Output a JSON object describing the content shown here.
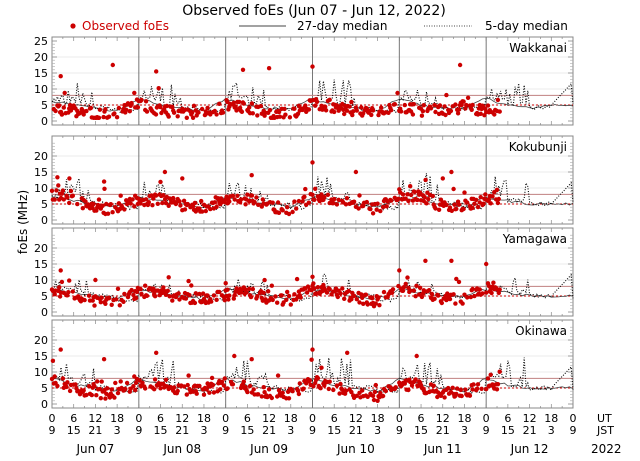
{
  "chart_data": {
    "type": "scatter",
    "title": "Observed foEs (Jun 07 - Jun 12, 2022)",
    "ylabel": "foEs (MHz)",
    "ylim": [
      0,
      25
    ],
    "yticks": [
      0,
      5,
      10,
      15,
      20,
      25
    ],
    "legend": {
      "placement": "top",
      "entries": [
        {
          "label": "Observed foEs",
          "style": "red-dot"
        },
        {
          "label": "27-day median",
          "style": "solid-line"
        },
        {
          "label": "5-day median",
          "style": "dotted-line"
        }
      ]
    },
    "x_axis": {
      "ut_label": "UT",
      "jst_label": "JST",
      "ut_ticks": [
        "0",
        "6",
        "12",
        "18"
      ],
      "jst_ticks": [
        "9",
        "15",
        "21",
        "3"
      ],
      "days": [
        "Jun 07",
        "Jun 08",
        "Jun 09",
        "Jun 10",
        "Jun 11",
        "Jun 12"
      ],
      "year": "2022"
    },
    "reference_lines": {
      "upper": 8,
      "lower": 5
    },
    "colors": {
      "observed": "#cc0000",
      "median": "#444444",
      "refline": "#c08080",
      "day_divider": "#777777"
    },
    "panels": [
      {
        "station": "Wakkanai",
        "observed_peaks": [
          [
            0.1,
            14
          ],
          [
            0.7,
            17.5
          ],
          [
            1.2,
            15.5
          ],
          [
            2.2,
            16
          ],
          [
            2.5,
            16.5
          ],
          [
            3.0,
            17
          ],
          [
            4.7,
            17.5
          ]
        ],
        "observed_base": [
          3,
          3,
          2,
          2,
          5,
          3,
          2,
          2,
          4,
          4,
          2,
          2,
          5,
          4,
          3,
          2,
          4,
          3,
          3,
          4,
          3,
          4,
          0,
          0
        ],
        "median27_base": [
          6,
          5,
          4,
          3,
          7,
          5,
          4,
          3,
          7,
          5,
          4,
          4,
          7,
          5,
          4,
          3,
          7,
          5,
          4,
          4,
          7,
          5,
          4,
          5
        ],
        "median5_peaks": [
          11,
          12,
          11,
          12,
          12,
          12,
          14,
          13,
          12,
          12,
          11,
          12
        ]
      },
      {
        "station": "Kokubunji",
        "observed_peaks": [
          [
            0.2,
            13
          ],
          [
            0.6,
            12
          ],
          [
            1.3,
            15
          ],
          [
            1.5,
            13
          ],
          [
            2.3,
            14
          ],
          [
            3.0,
            18
          ],
          [
            3.5,
            15
          ],
          [
            4.5,
            13
          ],
          [
            4.6,
            15
          ]
        ],
        "observed_base": [
          7,
          6,
          3,
          3,
          6,
          6,
          4,
          4,
          6,
          6,
          4,
          3,
          7,
          6,
          4,
          3,
          7,
          7,
          4,
          4,
          6,
          6,
          0,
          0
        ],
        "median27_base": [
          7,
          6,
          5,
          4,
          7,
          6,
          5,
          4,
          7,
          6,
          5,
          4,
          7,
          6,
          5,
          4,
          7,
          6,
          5,
          4,
          7,
          6,
          5,
          5
        ],
        "median5_peaks": [
          13,
          14,
          12,
          12,
          13,
          13,
          15,
          13,
          14,
          15,
          14,
          14
        ]
      },
      {
        "station": "Yamagawa",
        "observed_peaks": [
          [
            0.1,
            13
          ],
          [
            0.5,
            10
          ],
          [
            2.0,
            9
          ],
          [
            3.0,
            11
          ],
          [
            4.0,
            13
          ],
          [
            4.3,
            16
          ],
          [
            4.6,
            16
          ],
          [
            5.0,
            15
          ]
        ],
        "observed_base": [
          6,
          5,
          3,
          3,
          6,
          6,
          4,
          4,
          5,
          6,
          4,
          3,
          7,
          6,
          4,
          3,
          7,
          6,
          4,
          4,
          7,
          6,
          0,
          0
        ],
        "median27_base": [
          7,
          6,
          5,
          4,
          7,
          6,
          5,
          4,
          7,
          6,
          5,
          4,
          7,
          6,
          5,
          4,
          7,
          6,
          5,
          5,
          7,
          6,
          5,
          5
        ],
        "median5_peaks": [
          10,
          11,
          9,
          10,
          11,
          10,
          12,
          11,
          12,
          11,
          10,
          11
        ]
      },
      {
        "station": "Okinawa",
        "observed_peaks": [
          [
            0.1,
            17
          ],
          [
            0.6,
            14
          ],
          [
            1.2,
            16
          ],
          [
            2.1,
            15
          ],
          [
            2.3,
            14
          ],
          [
            3.0,
            17
          ],
          [
            3.4,
            16
          ],
          [
            4.2,
            15
          ]
        ],
        "observed_base": [
          7,
          5,
          3,
          3,
          6,
          6,
          4,
          4,
          6,
          5,
          3,
          3,
          7,
          5,
          3,
          2,
          6,
          5,
          3,
          3,
          6,
          5,
          0,
          0
        ],
        "median27_base": [
          8,
          6,
          5,
          4,
          8,
          6,
          5,
          4,
          8,
          6,
          5,
          4,
          8,
          6,
          5,
          4,
          8,
          6,
          5,
          4,
          8,
          6,
          5,
          5
        ],
        "median5_peaks": [
          15,
          13,
          15,
          14,
          14,
          13,
          16,
          15,
          14,
          13,
          14,
          15
        ]
      }
    ]
  }
}
